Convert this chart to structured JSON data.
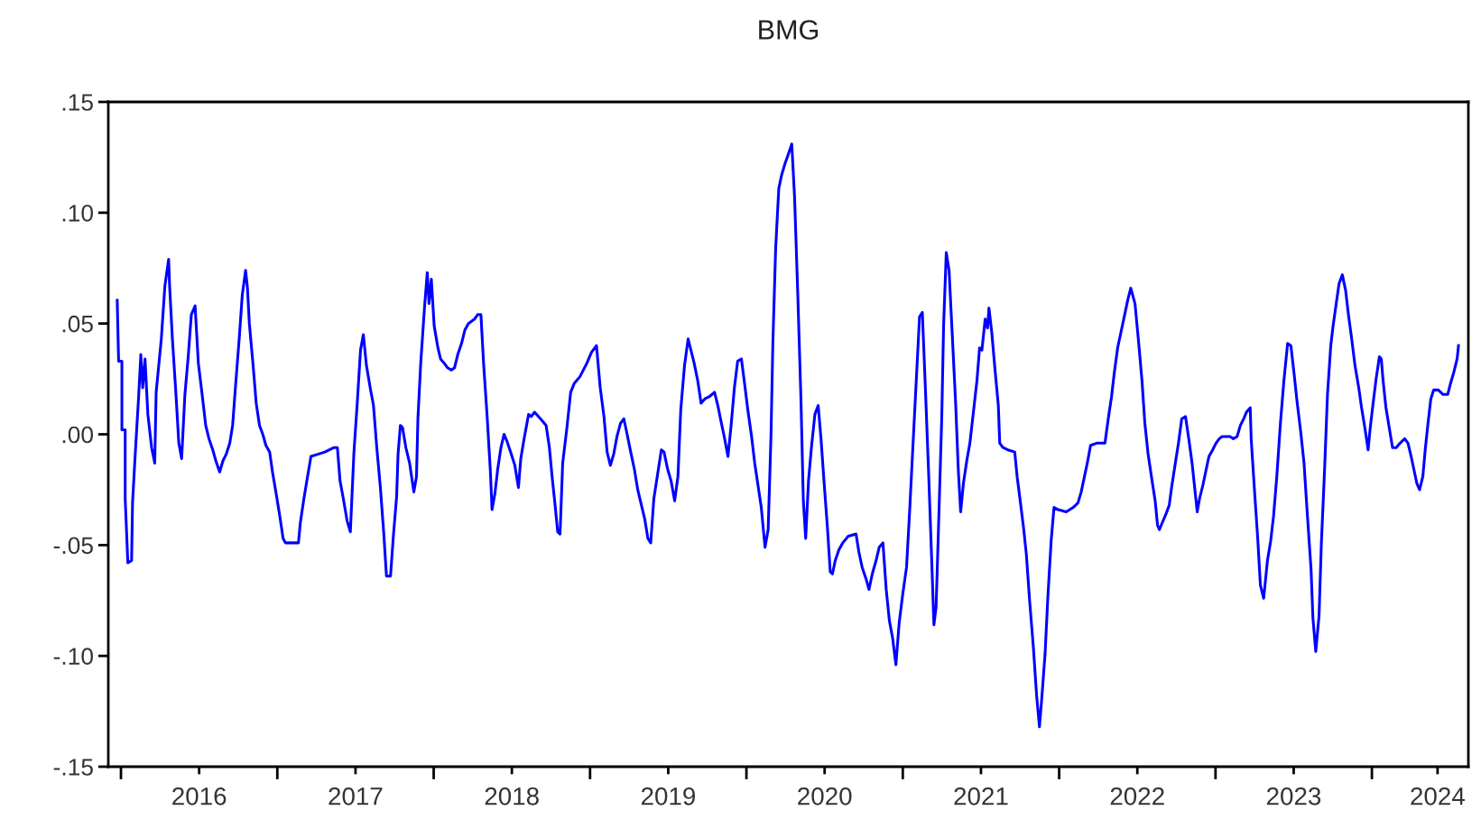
{
  "chart_data": {
    "type": "line",
    "title": "BMG",
    "xlim": [
      2015.919,
      2024.617
    ],
    "xticks": [
      {
        "value": 2016,
        "label": null
      },
      {
        "value": 2016.5,
        "label": "2016"
      },
      {
        "value": 2017,
        "label": null
      },
      {
        "value": 2017.5,
        "label": "2017"
      },
      {
        "value": 2018,
        "label": null
      },
      {
        "value": 2018.5,
        "label": "2018"
      },
      {
        "value": 2019,
        "label": null
      },
      {
        "value": 2019.5,
        "label": "2019"
      },
      {
        "value": 2020,
        "label": null
      },
      {
        "value": 2020.5,
        "label": "2020"
      },
      {
        "value": 2021,
        "label": null
      },
      {
        "value": 2021.5,
        "label": "2021"
      },
      {
        "value": 2022,
        "label": null
      },
      {
        "value": 2022.5,
        "label": "2022"
      },
      {
        "value": 2023,
        "label": null
      },
      {
        "value": 2023.5,
        "label": "2023"
      },
      {
        "value": 2024,
        "label": null
      },
      {
        "value": 2024.42,
        "label": "2024"
      }
    ],
    "ylim": [
      -0.15,
      0.15
    ],
    "yticks": [
      {
        "value": -0.15,
        "label": "-.15"
      },
      {
        "value": -0.1,
        "label": "-.10"
      },
      {
        "value": -0.05,
        "label": "-.05"
      },
      {
        "value": 0,
        "label": ".00"
      },
      {
        "value": 0.05,
        "label": ".05"
      },
      {
        "value": 0.1,
        "label": ".10"
      },
      {
        "value": 0.15,
        "label": ".15"
      }
    ],
    "grid": false,
    "legend": false,
    "marker": "none",
    "line_style": "solid",
    "series": [
      {
        "color": "#0000ff",
        "x": [
          2015.976,
          2015.985,
          2016.006,
          2016.006,
          2016.027,
          2016.027,
          2016.044,
          2016.068,
          2016.074,
          2016.092,
          2016.113,
          2016.127,
          2016.139,
          2016.154,
          2016.172,
          2016.196,
          2016.216,
          2016.225,
          2016.258,
          2016.281,
          2016.305,
          2016.311,
          2016.329,
          2016.35,
          2016.37,
          2016.388,
          2016.409,
          2016.43,
          2016.45,
          2016.474,
          2016.495,
          2016.519,
          2016.542,
          2016.563,
          2016.587,
          2016.607,
          2016.631,
          2016.652,
          2016.673,
          2016.696,
          2016.714,
          2016.735,
          2016.756,
          2016.776,
          2016.797,
          2016.809,
          2016.821,
          2016.844,
          2016.865,
          2016.886,
          2016.907,
          2016.927,
          2016.951,
          2016.969,
          2016.993,
          2017.016,
          2017.037,
          2017.052,
          2017.135,
          2017.147,
          2017.17,
          2017.191,
          2017.215,
          2017.259,
          2017.304,
          2017.363,
          2017.384,
          2017.401,
          2017.422,
          2017.446,
          2017.467,
          2017.476,
          2017.49,
          2017.511,
          2017.532,
          2017.55,
          2017.57,
          2017.594,
          2017.615,
          2017.636,
          2017.659,
          2017.68,
          2017.698,
          2017.724,
          2017.742,
          2017.763,
          2017.772,
          2017.787,
          2017.801,
          2017.822,
          2017.846,
          2017.873,
          2017.89,
          2017.899,
          2017.917,
          2017.941,
          2017.959,
          2017.97,
          2017.985,
          2018.003,
          2018.027,
          2018.044,
          2018.068,
          2018.089,
          2018.113,
          2018.133,
          2018.154,
          2018.178,
          2018.199,
          2018.222,
          2018.261,
          2018.281,
          2018.302,
          2018.32,
          2018.341,
          2018.362,
          2018.373,
          2018.391,
          2018.409,
          2018.43,
          2018.45,
          2018.468,
          2018.492,
          2018.519,
          2018.542,
          2018.557,
          2018.578,
          2018.607,
          2018.624,
          2018.645,
          2018.683,
          2018.719,
          2018.74,
          2018.757,
          2018.775,
          2018.793,
          2018.808,
          2018.825,
          2018.852,
          2018.876,
          2018.899,
          2018.935,
          2018.979,
          2019.009,
          2019.041,
          2019.065,
          2019.089,
          2019.109,
          2019.13,
          2019.151,
          2019.172,
          2019.195,
          2019.216,
          2019.237,
          2019.26,
          2019.284,
          2019.305,
          2019.325,
          2019.349,
          2019.37,
          2019.388,
          2019.408,
          2019.432,
          2019.456,
          2019.473,
          2019.497,
          2019.518,
          2019.541,
          2019.562,
          2019.58,
          2019.604,
          2019.627,
          2019.645,
          2019.666,
          2019.689,
          2019.71,
          2019.734,
          2019.763,
          2019.796,
          2019.817,
          2019.84,
          2019.858,
          2019.882,
          2019.902,
          2019.923,
          2019.944,
          2019.968,
          2019.988,
          2020.009,
          2020.033,
          2020.053,
          2020.074,
          2020.095,
          2020.119,
          2020.139,
          2020.157,
          2020.169,
          2020.187,
          2020.207,
          2020.225,
          2020.246,
          2020.266,
          2020.29,
          2020.308,
          2020.329,
          2020.349,
          2020.364,
          2020.379,
          2020.397,
          2020.417,
          2020.438,
          2020.459,
          2020.477,
          2020.497,
          2020.518,
          2020.536,
          2020.55,
          2020.568,
          2020.592,
          2020.616,
          2020.651,
          2020.701,
          2020.719,
          2020.74,
          2020.764,
          2020.784,
          2020.805,
          2020.829,
          2020.849,
          2020.873,
          2020.894,
          2020.914,
          2020.935,
          2020.956,
          2020.977,
          2021.0,
          2021.024,
          2021.045,
          2021.065,
          2021.086,
          2021.107,
          2021.125,
          2021.145,
          2021.166,
          2021.184,
          2021.199,
          2021.213,
          2021.231,
          2021.249,
          2021.261,
          2021.278,
          2021.296,
          2021.317,
          2021.338,
          2021.355,
          2021.37,
          2021.388,
          2021.409,
          2021.429,
          2021.45,
          2021.474,
          2021.491,
          2021.506,
          2021.527,
          2021.542,
          2021.551,
          2021.569,
          2021.59,
          2021.611,
          2021.62,
          2021.641,
          2021.671,
          2021.716,
          2021.731,
          2021.751,
          2021.772,
          2021.79,
          2021.811,
          2021.835,
          2021.856,
          2021.874,
          2021.889,
          2021.91,
          2021.928,
          2021.949,
          2021.967,
          2021.994,
          2022.045,
          2022.09,
          2022.12,
          2022.141,
          2022.162,
          2022.18,
          2022.201,
          2022.24,
          2022.293,
          2022.314,
          2022.335,
          2022.353,
          2022.374,
          2022.395,
          2022.419,
          2022.44,
          2022.458,
          2022.485,
          2022.509,
          2022.53,
          2022.548,
          2022.569,
          2022.59,
          2022.614,
          2022.629,
          2022.641,
          2022.659,
          2022.683,
          2022.704,
          2022.719,
          2022.743,
          2022.763,
          2022.784,
          2022.808,
          2022.829,
          2022.85,
          2022.868,
          2022.883,
          2022.898,
          2022.919,
          2022.94,
          2022.958,
          2022.982,
          2023.003,
          2023.024,
          2023.042,
          2023.093,
          2023.114,
          2023.138,
          2023.159,
          2023.18,
          2023.198,
          2023.222,
          2023.228,
          2023.248,
          2023.269,
          2023.287,
          2023.308,
          2023.332,
          2023.353,
          2023.371,
          2023.392,
          2023.414,
          2023.437,
          2023.461,
          2023.482,
          2023.503,
          2023.521,
          2023.545,
          2023.566,
          2023.587,
          2023.611,
          2023.623,
          2023.641,
          2023.662,
          2023.677,
          2023.698,
          2023.716,
          2023.737,
          2023.752,
          2023.772,
          2023.79,
          2023.811,
          2023.832,
          2023.85,
          2023.871,
          2023.892,
          2023.916,
          2023.934,
          2023.955,
          2023.976,
          2023.988,
          2024.006,
          2024.027,
          2024.048,
          2024.06,
          2024.072,
          2024.09,
          2024.111,
          2024.132,
          2024.156,
          2024.18,
          2024.21,
          2024.231,
          2024.251,
          2024.269,
          2024.287,
          2024.305,
          2024.326,
          2024.341,
          2024.359,
          2024.377,
          2024.395,
          2024.425,
          2024.455,
          2024.485,
          2024.503,
          2024.524,
          2024.545,
          2024.554
        ],
        "values": [
          0.0605,
          0.033,
          0.033,
          0.002,
          0.002,
          -0.029,
          -0.058,
          -0.057,
          -0.031,
          -0.008,
          0.017,
          0.036,
          0.021,
          0.034,
          0.009,
          -0.006,
          -0.013,
          0.019,
          0.043,
          0.067,
          0.079,
          0.067,
          0.043,
          0.02,
          -0.004,
          -0.011,
          0.018,
          0.035,
          0.054,
          0.058,
          0.032,
          0.018,
          0.004,
          -0.002,
          -0.007,
          -0.012,
          -0.017,
          -0.012,
          -0.009,
          -0.004,
          0.004,
          0.024,
          0.043,
          0.063,
          0.074,
          0.066,
          0.05,
          0.032,
          0.014,
          0.004,
          0.0,
          -0.005,
          -0.008,
          -0.017,
          -0.027,
          -0.037,
          -0.047,
          -0.049,
          -0.049,
          -0.04,
          -0.029,
          -0.02,
          -0.01,
          -0.009,
          -0.008,
          -0.006,
          -0.006,
          -0.021,
          -0.029,
          -0.039,
          -0.044,
          -0.03,
          -0.008,
          0.014,
          0.038,
          0.045,
          0.031,
          0.021,
          0.013,
          -0.006,
          -0.024,
          -0.044,
          -0.064,
          -0.064,
          -0.046,
          -0.028,
          -0.009,
          0.004,
          0.003,
          -0.006,
          -0.013,
          -0.026,
          -0.019,
          0.007,
          0.032,
          0.057,
          0.073,
          0.059,
          0.07,
          0.049,
          0.039,
          0.034,
          0.032,
          0.03,
          0.029,
          0.03,
          0.036,
          0.041,
          0.047,
          0.05,
          0.052,
          0.054,
          0.054,
          0.031,
          0.009,
          -0.016,
          -0.034,
          -0.027,
          -0.016,
          -0.006,
          0.0,
          -0.003,
          -0.008,
          -0.014,
          -0.024,
          -0.011,
          -0.002,
          0.009,
          0.008,
          0.01,
          0.007,
          0.004,
          -0.006,
          -0.019,
          -0.031,
          -0.044,
          -0.045,
          -0.013,
          0.003,
          0.019,
          0.023,
          0.026,
          0.032,
          0.037,
          0.04,
          0.021,
          0.008,
          -0.008,
          -0.014,
          -0.009,
          -0.001,
          0.005,
          0.007,
          0.0,
          -0.008,
          -0.016,
          -0.025,
          -0.031,
          -0.038,
          -0.047,
          -0.049,
          -0.029,
          -0.018,
          -0.007,
          -0.008,
          -0.016,
          -0.021,
          -0.03,
          -0.019,
          0.011,
          0.031,
          0.043,
          0.038,
          0.032,
          0.024,
          0.014,
          0.016,
          0.017,
          0.019,
          0.013,
          0.005,
          -0.001,
          -0.01,
          0.004,
          0.021,
          0.033,
          0.034,
          0.023,
          0.011,
          -0.001,
          -0.013,
          -0.023,
          -0.033,
          -0.051,
          -0.043,
          -0.001,
          0.041,
          0.084,
          0.111,
          0.117,
          0.122,
          0.126,
          0.131,
          0.107,
          0.062,
          0.015,
          -0.03,
          -0.047,
          -0.021,
          -0.005,
          0.009,
          0.013,
          -0.002,
          -0.022,
          -0.042,
          -0.062,
          -0.063,
          -0.057,
          -0.052,
          -0.049,
          -0.046,
          -0.045,
          -0.053,
          -0.06,
          -0.065,
          -0.07,
          -0.063,
          -0.057,
          -0.051,
          -0.049,
          -0.07,
          -0.084,
          -0.092,
          -0.104,
          -0.085,
          -0.072,
          -0.06,
          -0.033,
          -0.005,
          0.024,
          0.053,
          0.055,
          0.02,
          -0.019,
          -0.055,
          -0.086,
          -0.078,
          -0.036,
          0.007,
          0.049,
          0.082,
          0.074,
          0.044,
          0.014,
          -0.016,
          -0.035,
          -0.022,
          -0.012,
          -0.004,
          0.009,
          0.024,
          0.039,
          0.038,
          0.052,
          0.048,
          0.057,
          0.046,
          0.029,
          0.013,
          -0.004,
          -0.006,
          -0.007,
          -0.008,
          -0.019,
          -0.03,
          -0.042,
          -0.054,
          -0.075,
          -0.096,
          -0.118,
          -0.132,
          -0.119,
          -0.099,
          -0.073,
          -0.048,
          -0.033,
          -0.034,
          -0.035,
          -0.033,
          -0.031,
          -0.026,
          -0.019,
          -0.013,
          -0.005,
          -0.004,
          -0.004,
          0.007,
          0.017,
          0.028,
          0.039,
          0.046,
          0.054,
          0.061,
          0.066,
          0.059,
          0.041,
          0.024,
          0.005,
          -0.009,
          -0.019,
          -0.03,
          -0.041,
          -0.043,
          -0.04,
          -0.036,
          -0.032,
          -0.024,
          -0.013,
          -0.004,
          0.007,
          0.008,
          -0.002,
          -0.013,
          -0.025,
          -0.035,
          -0.029,
          -0.023,
          -0.016,
          -0.01,
          -0.007,
          -0.004,
          -0.002,
          -0.001,
          -0.001,
          -0.002,
          -0.001,
          0.004,
          0.007,
          0.01,
          0.012,
          -0.002,
          -0.024,
          -0.046,
          -0.068,
          -0.074,
          -0.057,
          -0.048,
          -0.037,
          -0.019,
          0.004,
          0.024,
          0.041,
          0.04,
          0.027,
          0.015,
          0.001,
          -0.013,
          -0.036,
          -0.061,
          -0.083,
          -0.098,
          -0.082,
          -0.049,
          -0.015,
          0.018,
          0.04,
          0.049,
          0.059,
          0.068,
          0.072,
          0.065,
          0.054,
          0.043,
          0.031,
          0.021,
          0.012,
          0.003,
          -0.007,
          0.002,
          0.013,
          0.025,
          0.035,
          0.034,
          0.024,
          0.012,
          0.003,
          -0.006,
          -0.006,
          -0.004,
          -0.002,
          -0.004,
          -0.01,
          -0.016,
          -0.022,
          -0.025,
          -0.019,
          -0.007,
          0.005,
          0.016,
          0.02,
          0.02,
          0.018,
          0.018,
          0.023,
          0.028,
          0.034,
          0.04
        ]
      }
    ]
  }
}
